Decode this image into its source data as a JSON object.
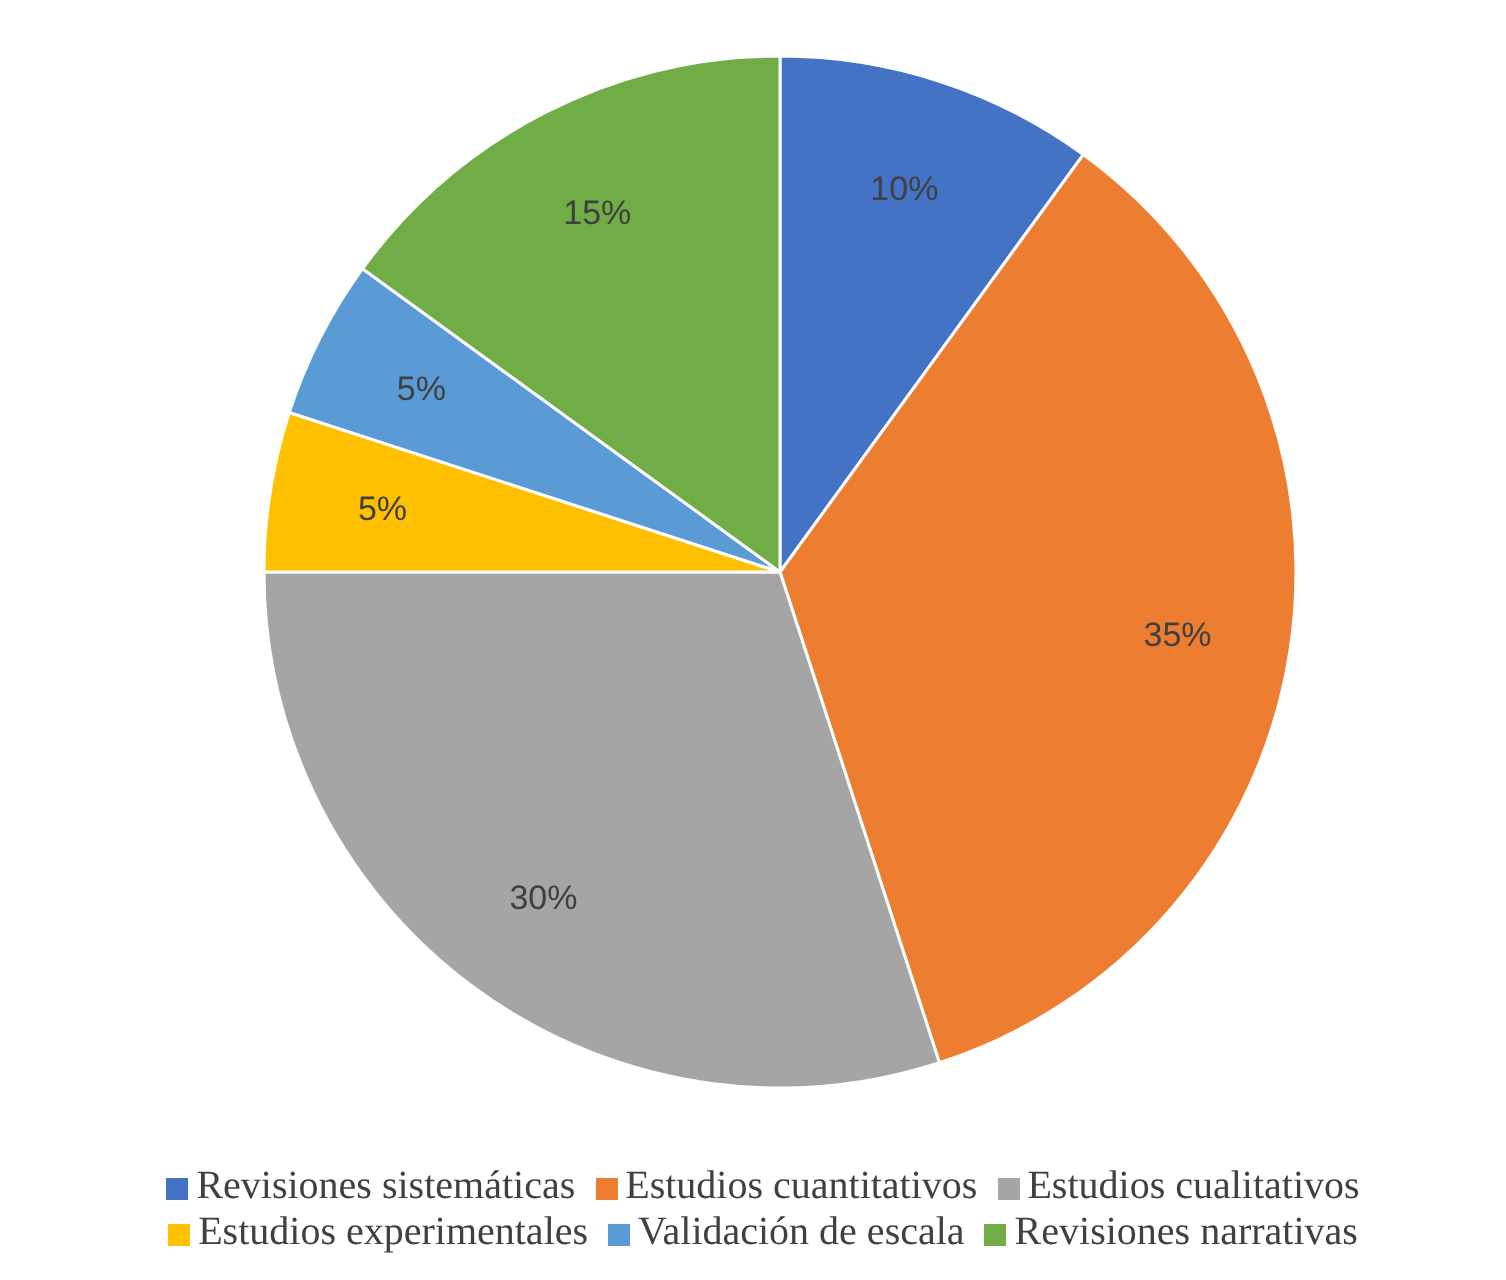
{
  "chart_data": {
    "type": "pie",
    "categories": [
      "Revisiones sistemáticas",
      "Estudios cuantitativos",
      "Estudios cualitativos",
      "Estudios experimentales",
      "Validación de escala",
      "Revisiones narrativas"
    ],
    "values": [
      10,
      35,
      30,
      5,
      5,
      15
    ],
    "colors": [
      "#4472c4",
      "#ed7d31",
      "#a5a5a5",
      "#ffc000",
      "#5b9bd5",
      "#70ad47"
    ],
    "value_labels": [
      "10%",
      "35%",
      "30%",
      "5%",
      "5%",
      "15%"
    ],
    "legend": "bottom"
  }
}
